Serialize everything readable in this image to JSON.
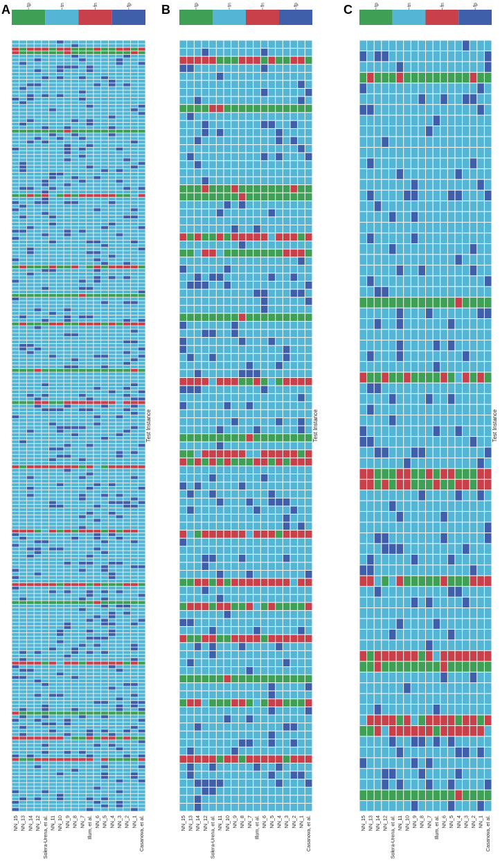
{
  "chart_data": {
    "type": "heatmap",
    "legend": {
      "position": "top",
      "categories": [
        {
          "label": "tp",
          "color": "#3f9f55"
        },
        {
          "label": "tn",
          "color": "#55b5d4"
        },
        {
          "label": "fn",
          "color": "#c8404a"
        },
        {
          "label": "fp",
          "color": "#3f5faa"
        }
      ]
    },
    "grid": true,
    "row_axis_label": "Test Instance",
    "columns": [
      "NN_15",
      "NN_13",
      "NN_14",
      "NN_12",
      "Solera-Urena, et al.",
      "NN_11",
      "NN_10",
      "NN_9",
      "NN_8",
      "NN_7",
      "Illum, et al.",
      "NN_6",
      "NN_5",
      "NN_4",
      "NN_3",
      "NN_2",
      "NN_1",
      "Casanova, et al."
    ],
    "panels": [
      {
        "label": "A",
        "rows": 216,
        "row_pattern": [
          {
            "rows": [
              3,
              25,
              71,
              92,
              157,
              188
            ],
            "values": "tp"
          },
          {
            "rows": [
              2,
              43,
              63,
              79,
              101,
              119,
              137,
              152,
              174,
              195,
              201
            ],
            "values": "fn-mixed"
          }
        ]
      },
      {
        "label": "B",
        "rows": 96,
        "row_pattern": [
          {
            "rows": [
              8,
              18,
              19,
              34,
              49,
              79
            ],
            "values": "tp"
          },
          {
            "rows": [
              2,
              24,
              26,
              42,
              51,
              52,
              61,
              67,
              70,
              74,
              82,
              89
            ],
            "values": "fn-mixed"
          }
        ]
      },
      {
        "label": "C",
        "rows": 72,
        "row_pattern": [
          {
            "rows": [
              3,
              24,
              58,
              70
            ],
            "values": "tp"
          },
          {
            "rows": [
              31,
              40,
              41,
              50,
              57,
              63,
              64
            ],
            "values": "fn-mixed"
          }
        ]
      }
    ]
  }
}
